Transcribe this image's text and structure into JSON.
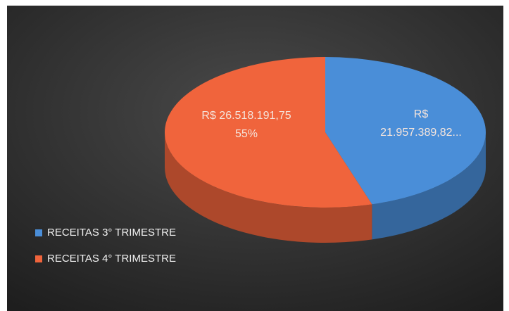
{
  "chart_data": {
    "type": "pie",
    "categories": [
      "RECEITAS 3° TRIMESTRE",
      "RECEITAS 4° TRIMESTRE"
    ],
    "values": [
      21957389.82,
      26518191.75
    ],
    "value_labels": [
      "R$ 21.957.389,82...",
      "R$ 26.518.191,75"
    ],
    "percent_labels": [
      null,
      "55%"
    ],
    "colors": [
      "#4a8ed8",
      "#f0643c"
    ],
    "legend": "bottom-left"
  }
}
